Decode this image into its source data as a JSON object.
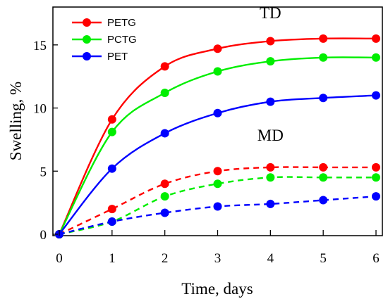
{
  "chart_data": {
    "type": "line",
    "xlabel": "Time, days",
    "ylabel": "Swelling, %",
    "xlim": [
      0,
      6
    ],
    "ylim": [
      0,
      18
    ],
    "x_ticks": [
      0,
      1,
      2,
      3,
      4,
      5,
      6
    ],
    "y_ticks": [
      0,
      5,
      10,
      15
    ],
    "grid": false,
    "legend_position": "top-left",
    "x": [
      0,
      1,
      2,
      3,
      4,
      5,
      6
    ],
    "annotations": [
      {
        "text": "TD",
        "x": 4.0,
        "y": 17.1
      },
      {
        "text": "MD",
        "x": 4.0,
        "y": 7.4
      }
    ],
    "series": [
      {
        "name": "PETG",
        "group": "TD",
        "color": "#ff0000",
        "dashed": false,
        "in_legend": true,
        "values": [
          0,
          9.1,
          13.3,
          14.7,
          15.3,
          15.5,
          15.5
        ]
      },
      {
        "name": "PCTG",
        "group": "TD",
        "color": "#00ee00",
        "dashed": false,
        "in_legend": true,
        "values": [
          0,
          8.1,
          11.2,
          12.9,
          13.7,
          14.0,
          14.0
        ]
      },
      {
        "name": "PET",
        "group": "TD",
        "color": "#0000ff",
        "dashed": false,
        "in_legend": true,
        "values": [
          0,
          5.2,
          8.0,
          9.6,
          10.5,
          10.8,
          11.0
        ]
      },
      {
        "name": "PETG",
        "group": "MD",
        "color": "#ff0000",
        "dashed": true,
        "in_legend": false,
        "values": [
          0,
          2.0,
          4.0,
          5.0,
          5.3,
          5.3,
          5.3
        ]
      },
      {
        "name": "PCTG",
        "group": "MD",
        "color": "#00ee00",
        "dashed": true,
        "in_legend": false,
        "values": [
          0,
          1.0,
          3.0,
          4.0,
          4.5,
          4.5,
          4.5
        ]
      },
      {
        "name": "PET",
        "group": "MD",
        "color": "#0000ff",
        "dashed": true,
        "in_legend": false,
        "values": [
          0,
          1.0,
          1.7,
          2.2,
          2.4,
          2.7,
          3.0
        ]
      }
    ]
  }
}
